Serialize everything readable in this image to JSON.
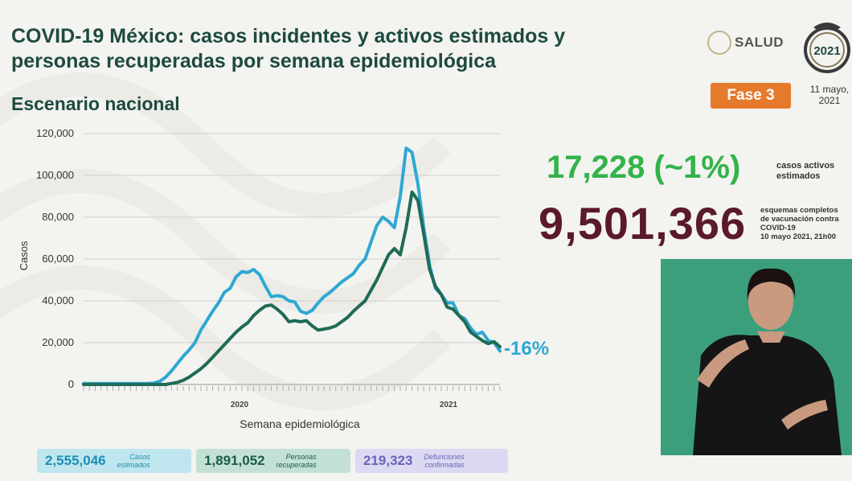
{
  "title_lines": [
    "COVID-19 México: casos incidentes y activos estimados y",
    "personas recuperadas por semana epidemiológica"
  ],
  "subtitle": "Escenario nacional",
  "logo": {
    "salud_text": "SALUD"
  },
  "phase_label": "Fase 3",
  "date_lines": [
    "11 mayo,",
    "2021"
  ],
  "active_cases": {
    "value": "17,228 (~1%)",
    "label_lines": [
      "casos activos",
      "estimados"
    ]
  },
  "vaccination": {
    "value": "9,501,366",
    "label_lines": [
      "esquemas completos",
      "de vacunación contra",
      "COVID-19",
      "10 mayo 2021, 21h00"
    ]
  },
  "kpis": [
    {
      "value": "2,555,046",
      "label_lines": [
        "Casos",
        "estimados"
      ]
    },
    {
      "value": "1,891,052",
      "label_lines": [
        "Personas",
        "recuperadas"
      ]
    },
    {
      "value": "219,323",
      "label_lines": [
        "Defunciones",
        "confirmadas"
      ]
    }
  ],
  "colors": {
    "estimated": "#2ea8d3",
    "recovered": "#1f6b55",
    "active": "#33b34a",
    "vaccination": "#5a1a28",
    "phase": "#e57a2c"
  },
  "chart_data": {
    "type": "line",
    "xlabel": "Semana epidemiológica",
    "ylabel": "Casos",
    "ylim": [
      0,
      120000
    ],
    "yticks": [
      "0",
      "20,000",
      "40,000",
      "60,000",
      "80,000",
      "100,000",
      "120,000"
    ],
    "year_labels": [
      "2020",
      "2021"
    ],
    "change_annotation": "-16%",
    "grid": "horizontal",
    "series": [
      {
        "values": [
          500,
          500,
          500,
          500,
          500,
          500,
          500,
          500,
          500,
          500,
          500,
          500,
          700,
          1500,
          3500,
          6500,
          10000,
          13500,
          16500,
          20000,
          26000,
          30500,
          35000,
          39000,
          44000,
          46000,
          51500,
          54000,
          53500,
          55000,
          52500,
          47000,
          42000,
          42500,
          42000,
          40000,
          39500,
          35000,
          34000,
          35500,
          39000,
          42000,
          44000,
          46500,
          49000,
          51000,
          53000,
          57000,
          60000,
          68000,
          76000,
          80000,
          78000,
          75000,
          90000,
          113000,
          111000,
          96000,
          75000,
          57000,
          46000,
          43000,
          39000,
          39000,
          33000,
          31500,
          27000,
          24000,
          25000,
          21000,
          20000,
          16000
        ]
      },
      {
        "values": [
          0,
          0,
          0,
          0,
          0,
          0,
          0,
          0,
          0,
          0,
          0,
          0,
          0,
          0,
          0,
          500,
          1000,
          2000,
          3500,
          5500,
          7500,
          10000,
          13000,
          16000,
          19000,
          22000,
          25000,
          27500,
          29500,
          33000,
          35500,
          37500,
          38000,
          36000,
          33500,
          30000,
          30500,
          30000,
          30500,
          28000,
          26000,
          26500,
          27000,
          28000,
          30000,
          32000,
          35000,
          37500,
          40000,
          45000,
          50000,
          56000,
          62000,
          65000,
          62000,
          75000,
          92000,
          88000,
          72000,
          55000,
          47000,
          43000,
          37000,
          36000,
          33000,
          30000,
          25000,
          23000,
          21000,
          19500,
          20500,
          18000
        ]
      }
    ]
  }
}
